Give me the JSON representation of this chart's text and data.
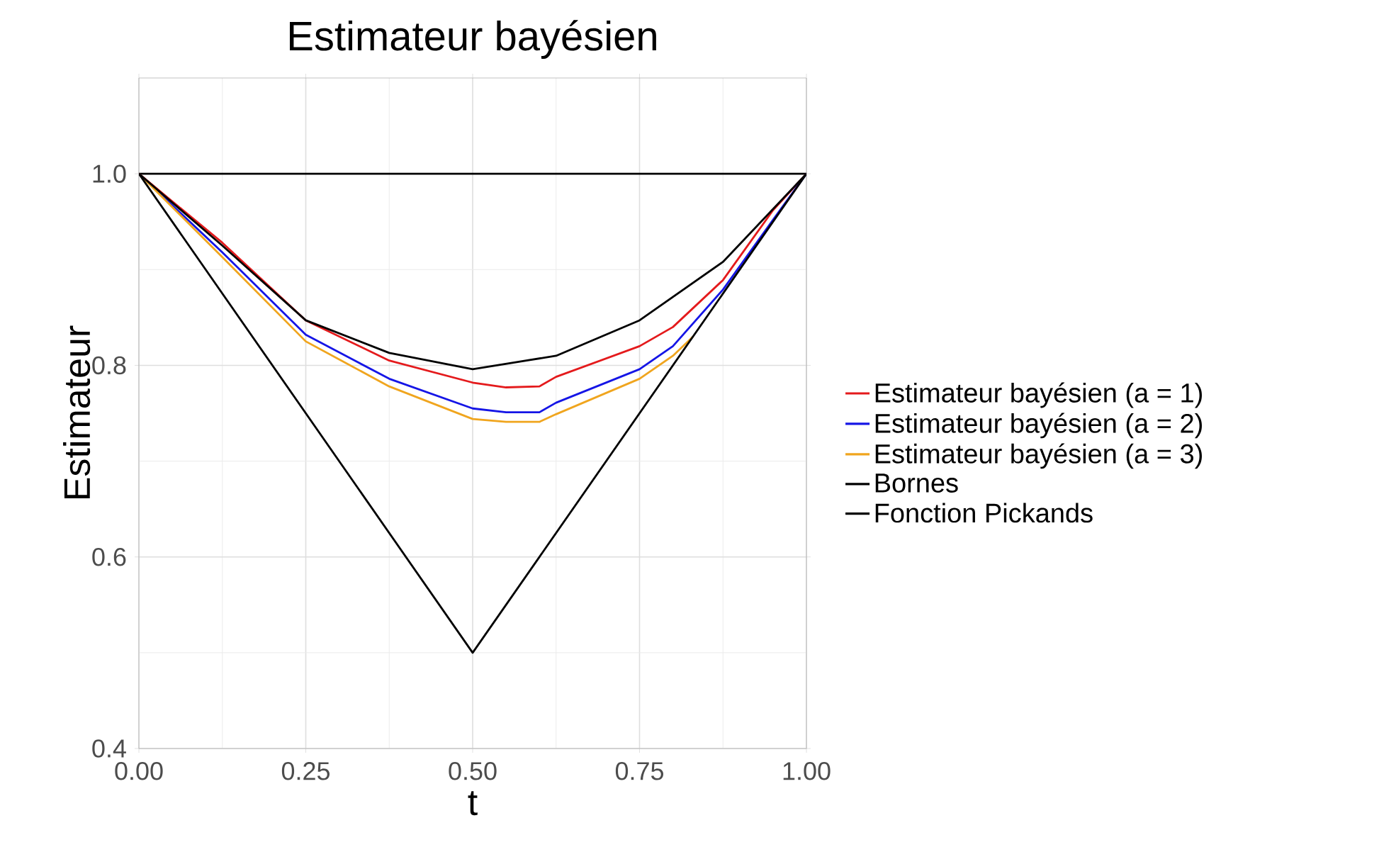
{
  "chart_data": {
    "type": "line",
    "title": "Estimateur bayésien",
    "xlabel": "t",
    "ylabel": "Estimateur",
    "xlim": [
      0,
      1
    ],
    "ylim": [
      0.4,
      1.1
    ],
    "xticks": [
      {
        "value": 0,
        "label": "0.00"
      },
      {
        "value": 0.25,
        "label": "0.25"
      },
      {
        "value": 0.5,
        "label": "0.50"
      },
      {
        "value": 0.75,
        "label": "0.75"
      },
      {
        "value": 1,
        "label": "1.00"
      }
    ],
    "yticks": [
      0.4,
      0.6,
      0.8,
      {
        "value": 1,
        "label": "1.0"
      }
    ],
    "ref_lines": [
      {
        "axis": "y",
        "value": 1,
        "color": "#000000"
      }
    ],
    "grid": true,
    "legend": "right",
    "marker": "none",
    "line_style": "solid",
    "series": [
      {
        "name": "Estimateur bayésien (a = 1)",
        "color": "#e41a1c",
        "x": [
          0,
          0.125,
          0.25,
          0.375,
          0.5,
          0.55,
          0.6,
          0.625,
          0.75,
          0.8,
          0.875,
          0.95,
          1
        ],
        "values": [
          1.0,
          0.928,
          0.847,
          0.805,
          0.782,
          0.777,
          0.778,
          0.788,
          0.82,
          0.84,
          0.889,
          0.962,
          1.0
        ]
      },
      {
        "name": "Estimateur bayésien (a = 2)",
        "color": "#1515e6",
        "x": [
          0,
          0.125,
          0.25,
          0.375,
          0.5,
          0.55,
          0.6,
          0.625,
          0.75,
          0.8,
          0.875,
          0.95,
          1
        ],
        "values": [
          1.0,
          0.918,
          0.832,
          0.786,
          0.755,
          0.751,
          0.751,
          0.761,
          0.796,
          0.82,
          0.879,
          0.952,
          1.0
        ]
      },
      {
        "name": "Estimateur bayésien (a = 3)",
        "color": "#f0a51e",
        "x": [
          0,
          0.125,
          0.25,
          0.375,
          0.5,
          0.55,
          0.6,
          0.625,
          0.75,
          0.8,
          0.83
        ],
        "values": [
          1.0,
          0.913,
          0.825,
          0.778,
          0.744,
          0.741,
          0.741,
          0.749,
          0.786,
          0.81,
          0.83
        ]
      },
      {
        "name": "Bornes",
        "color": "#000000",
        "x": [
          0,
          0.5,
          1
        ],
        "values": [
          1.0,
          0.5,
          1.0
        ]
      },
      {
        "name": "Fonction Pickands",
        "color": "#000000",
        "x": [
          0,
          0.125,
          0.25,
          0.375,
          0.5,
          0.625,
          0.75,
          0.875,
          1
        ],
        "values": [
          1.0,
          0.925,
          0.847,
          0.813,
          0.796,
          0.81,
          0.847,
          0.908,
          1.0
        ]
      }
    ]
  }
}
